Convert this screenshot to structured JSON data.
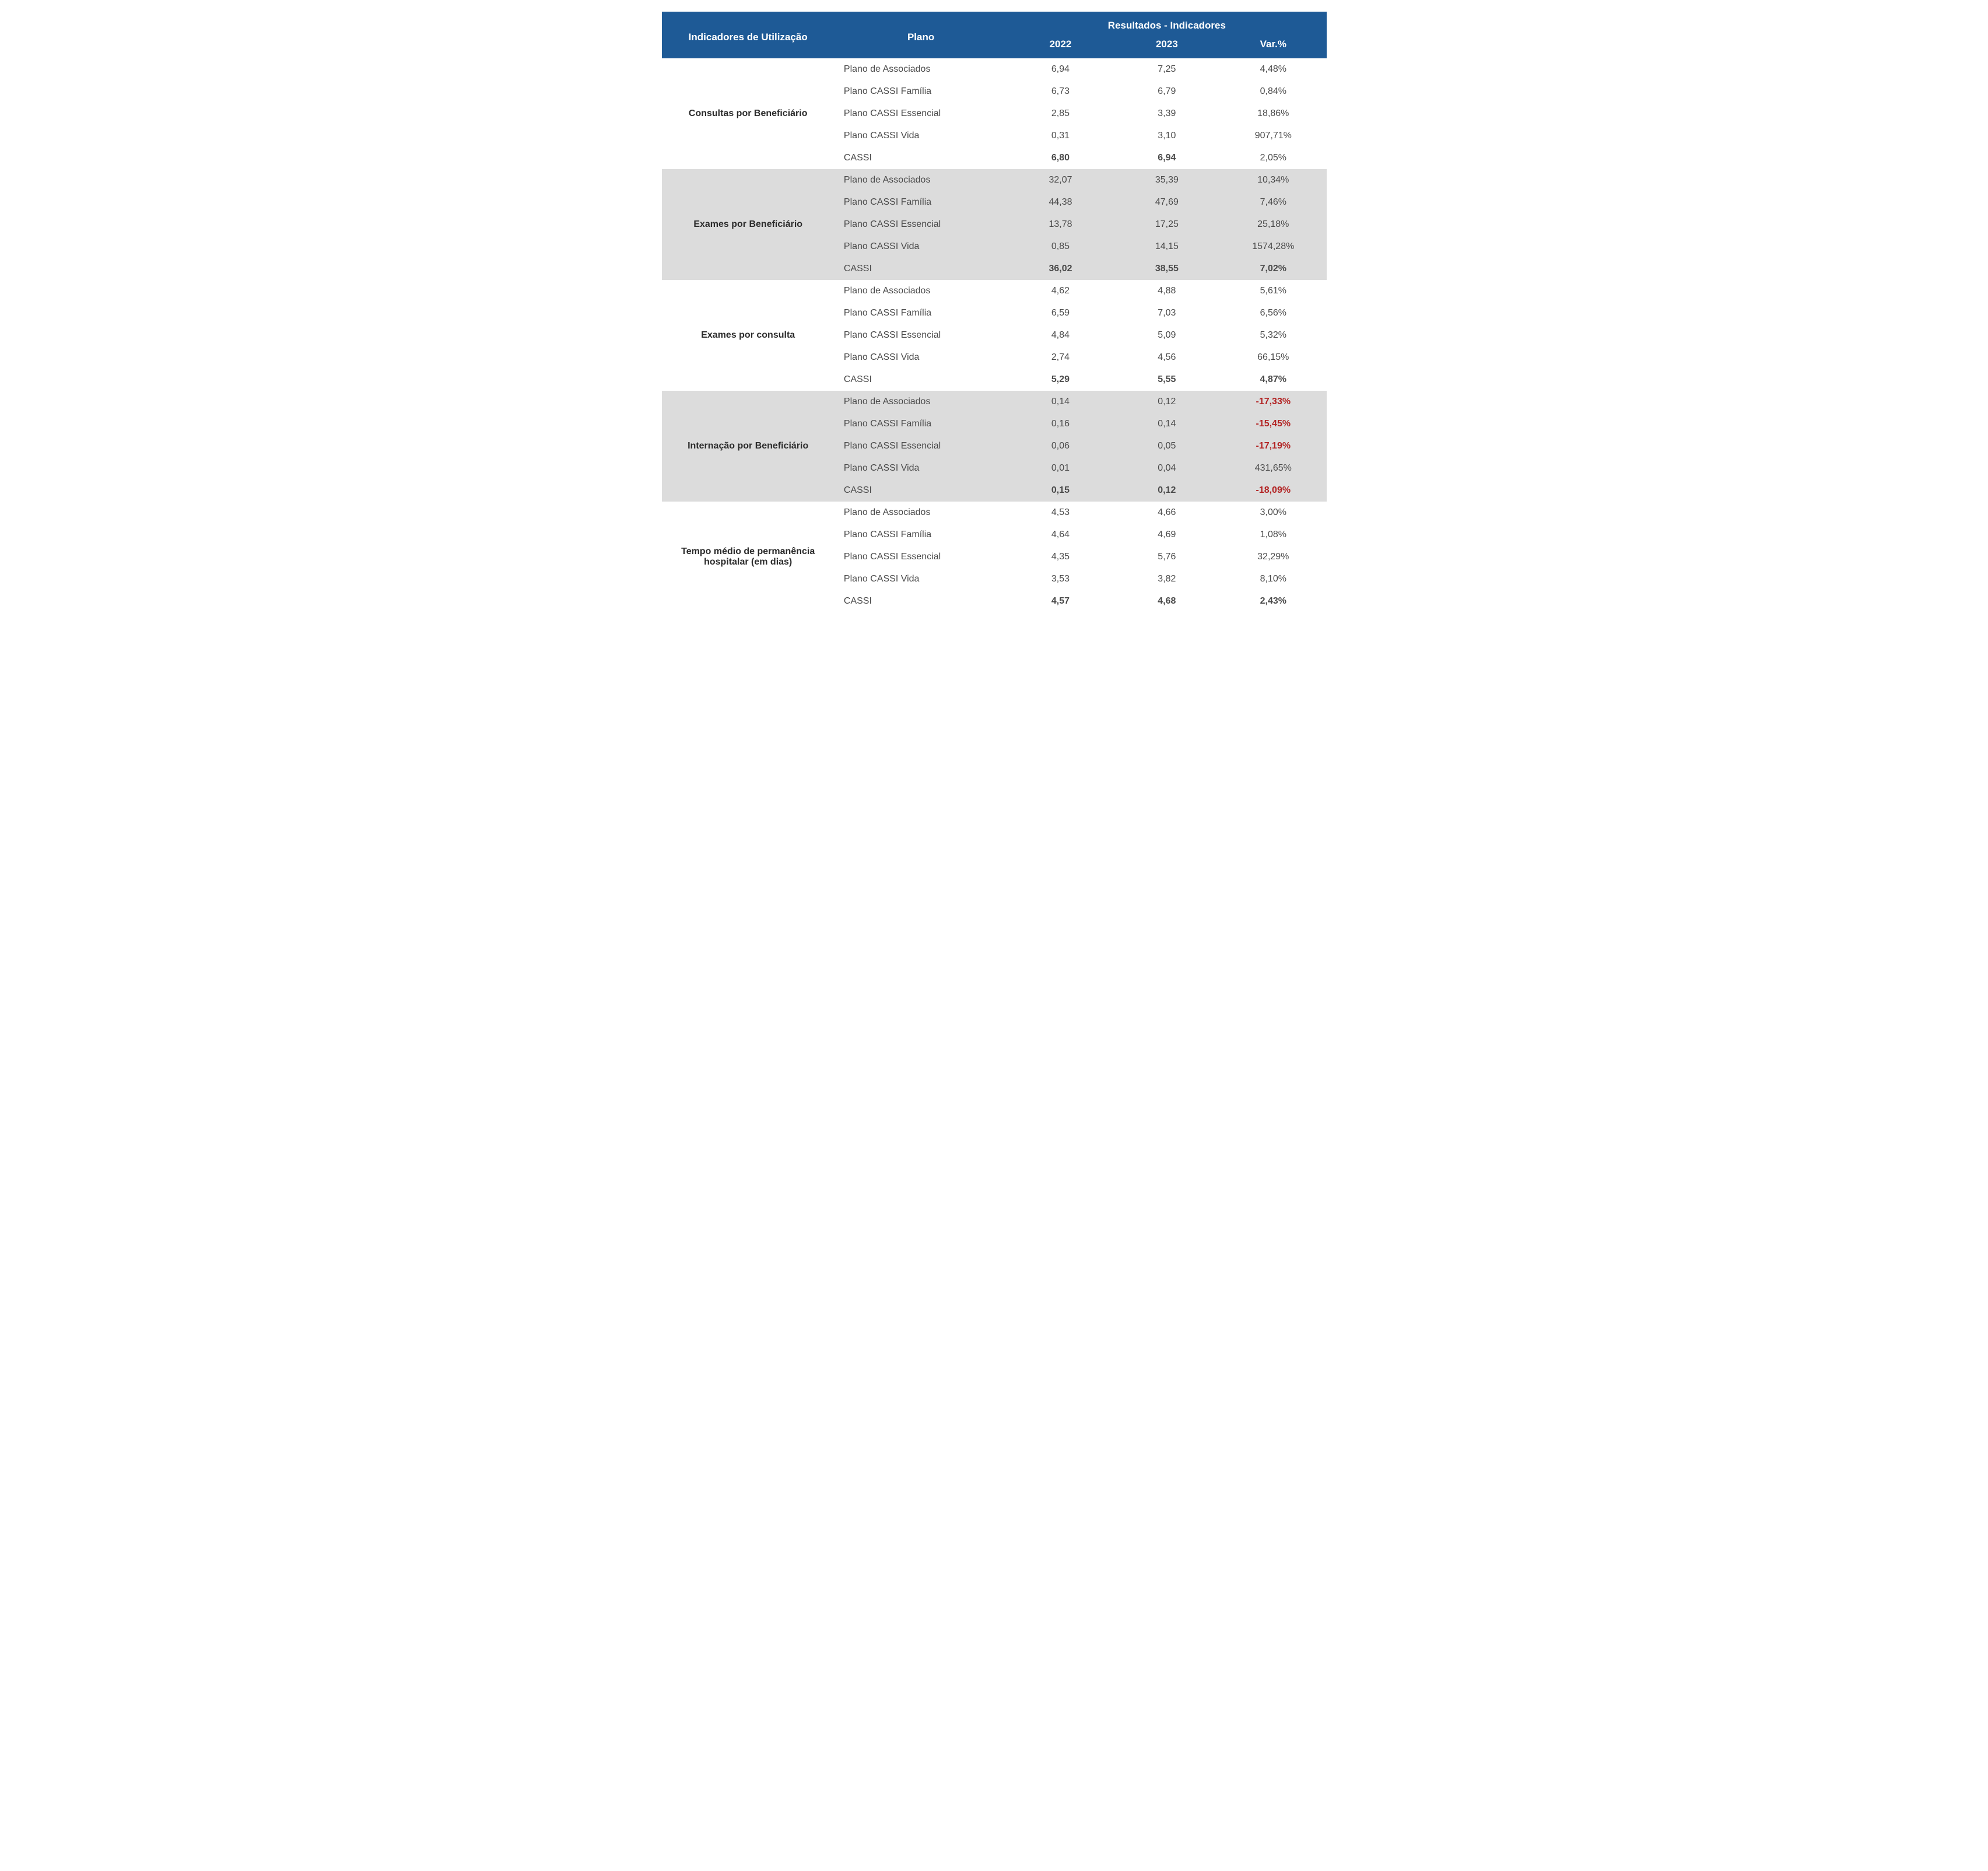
{
  "headers": {
    "indicator": "Indicadores de Utilização",
    "plan": "Plano",
    "results_group": "Resultados - Indicadores",
    "year_2022": "2022",
    "year_2023": "2023",
    "var_pct": "Var.%"
  },
  "colors": {
    "header_bg": "#1e5a96",
    "header_text": "#ffffff",
    "row_shaded_bg": "#dcdcdc",
    "row_white_bg": "#ffffff",
    "text_primary": "#2c2c2c",
    "text_secondary": "#4a4a4a",
    "negative": "#b22222"
  },
  "typography": {
    "header_fontsize": 17,
    "body_fontsize": 16,
    "header_fontweight": 700,
    "indicator_fontweight": 700
  },
  "groups": [
    {
      "indicator": "Consultas por Beneficiário",
      "shaded": false,
      "rows": [
        {
          "plan": "Plano de Associados",
          "y2022": "6,94",
          "y2023": "7,25",
          "var": "4,48%",
          "negative": false
        },
        {
          "plan": "Plano CASSI Família",
          "y2022": "6,73",
          "y2023": "6,79",
          "var": "0,84%",
          "negative": false
        },
        {
          "plan": "Plano CASSI Essencial",
          "y2022": "2,85",
          "y2023": "3,39",
          "var": "18,86%",
          "negative": false
        },
        {
          "plan": "Plano CASSI Vida",
          "y2022": "0,31",
          "y2023": "3,10",
          "var": "907,71%",
          "negative": false
        },
        {
          "plan": "CASSI",
          "y2022": "6,80",
          "y2023": "6,94",
          "var": "2,05%",
          "negative": false,
          "is_cassi": true,
          "var_bold": false
        }
      ]
    },
    {
      "indicator": "Exames por Beneficiário",
      "shaded": true,
      "rows": [
        {
          "plan": "Plano de Associados",
          "y2022": "32,07",
          "y2023": "35,39",
          "var": "10,34%",
          "negative": false
        },
        {
          "plan": "Plano CASSI Família",
          "y2022": "44,38",
          "y2023": "47,69",
          "var": "7,46%",
          "negative": false
        },
        {
          "plan": "Plano CASSI Essencial",
          "y2022": "13,78",
          "y2023": "17,25",
          "var": "25,18%",
          "negative": false
        },
        {
          "plan": "Plano CASSI Vida",
          "y2022": "0,85",
          "y2023": "14,15",
          "var": "1574,28%",
          "negative": false
        },
        {
          "plan": "CASSI",
          "y2022": "36,02",
          "y2023": "38,55",
          "var": "7,02%",
          "negative": false,
          "is_cassi": true,
          "var_bold": true
        }
      ]
    },
    {
      "indicator": "Exames por consulta",
      "shaded": false,
      "rows": [
        {
          "plan": "Plano de Associados",
          "y2022": "4,62",
          "y2023": "4,88",
          "var": "5,61%",
          "negative": false
        },
        {
          "plan": "Plano CASSI Família",
          "y2022": "6,59",
          "y2023": "7,03",
          "var": "6,56%",
          "negative": false
        },
        {
          "plan": "Plano CASSI Essencial",
          "y2022": "4,84",
          "y2023": "5,09",
          "var": "5,32%",
          "negative": false
        },
        {
          "plan": "Plano CASSI Vida",
          "y2022": "2,74",
          "y2023": "4,56",
          "var": "66,15%",
          "negative": false
        },
        {
          "plan": "CASSI",
          "y2022": "5,29",
          "y2023": "5,55",
          "var": "4,87%",
          "negative": false,
          "is_cassi": true,
          "var_bold": true
        }
      ]
    },
    {
      "indicator": "Internação por Beneficiário",
      "shaded": true,
      "rows": [
        {
          "plan": "Plano de Associados",
          "y2022": "0,14",
          "y2023": "0,12",
          "var": "-17,33%",
          "negative": true
        },
        {
          "plan": "Plano CASSI Família",
          "y2022": "0,16",
          "y2023": "0,14",
          "var": "-15,45%",
          "negative": true
        },
        {
          "plan": "Plano CASSI Essencial",
          "y2022": "0,06",
          "y2023": "0,05",
          "var": "-17,19%",
          "negative": true
        },
        {
          "plan": "Plano CASSI Vida",
          "y2022": "0,01",
          "y2023": "0,04",
          "var": "431,65%",
          "negative": false
        },
        {
          "plan": "CASSI",
          "y2022": "0,15",
          "y2023": "0,12",
          "var": "-18,09%",
          "negative": true,
          "is_cassi": true,
          "var_bold": true
        }
      ]
    },
    {
      "indicator": "Tempo médio de permanência hospitalar (em dias)",
      "shaded": false,
      "rows": [
        {
          "plan": "Plano de Associados",
          "y2022": "4,53",
          "y2023": "4,66",
          "var": "3,00%",
          "negative": false
        },
        {
          "plan": "Plano CASSI Família",
          "y2022": "4,64",
          "y2023": "4,69",
          "var": "1,08%",
          "negative": false
        },
        {
          "plan": "Plano CASSI Essencial",
          "y2022": "4,35",
          "y2023": "5,76",
          "var": "32,29%",
          "negative": false
        },
        {
          "plan": "Plano CASSI Vida",
          "y2022": "3,53",
          "y2023": "3,82",
          "var": "8,10%",
          "negative": false
        },
        {
          "plan": "CASSI",
          "y2022": "4,57",
          "y2023": "4,68",
          "var": "2,43%",
          "negative": false,
          "is_cassi": true,
          "var_bold": true
        }
      ]
    }
  ]
}
